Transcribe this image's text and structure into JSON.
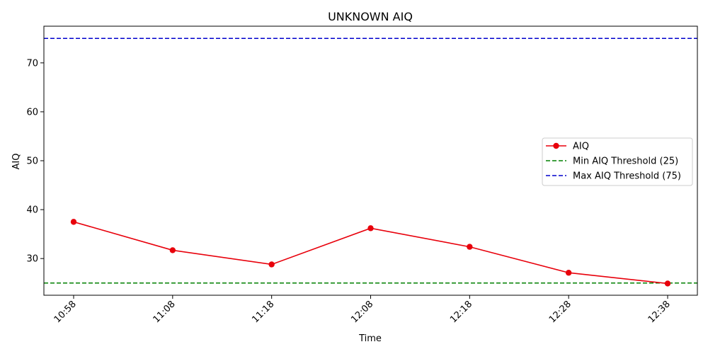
{
  "chart_data": {
    "type": "line",
    "title": "UNKNOWN AIQ",
    "xlabel": "Time",
    "ylabel": "AIQ",
    "categories": [
      "10:58",
      "11:08",
      "11:18",
      "12:08",
      "12:18",
      "12:28",
      "12:38"
    ],
    "series": [
      {
        "name": "AIQ",
        "values": [
          37.5,
          31.7,
          28.8,
          36.2,
          32.4,
          27.1,
          24.9
        ],
        "color": "#e8000b"
      }
    ],
    "thresholds": [
      {
        "name": "Min AIQ Threshold (25)",
        "value": 25,
        "color": "#008000"
      },
      {
        "name": "Max AIQ Threshold (75)",
        "value": 75,
        "color": "#0000cc"
      }
    ],
    "ylim": [
      22.5,
      77.5
    ],
    "yticks": [
      30,
      40,
      50,
      60,
      70
    ],
    "grid": false,
    "legend_position": "center-right"
  }
}
